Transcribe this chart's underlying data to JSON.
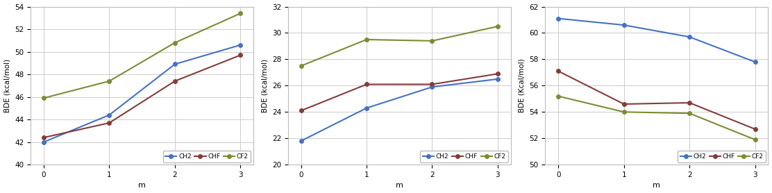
{
  "charts": [
    {
      "title": "",
      "ylabel": "BDE (kcal/mol)",
      "xlabel": "m",
      "ylim": [
        40,
        54
      ],
      "yticks": [
        40,
        42,
        44,
        46,
        48,
        50,
        52,
        54
      ],
      "xticks": [
        0,
        1,
        2,
        3
      ],
      "series": {
        "CH2": [
          42.0,
          44.4,
          48.9,
          50.6
        ],
        "CHF": [
          42.4,
          43.7,
          47.4,
          49.7
        ],
        "CF2": [
          45.9,
          47.4,
          50.8,
          53.4
        ]
      },
      "legend_loc": "lower right"
    },
    {
      "title": "",
      "ylabel": "BDE (kcal/mol)",
      "xlabel": "m",
      "ylim": [
        20,
        32
      ],
      "yticks": [
        20,
        22,
        24,
        26,
        28,
        30,
        32
      ],
      "xticks": [
        0,
        1,
        2,
        3
      ],
      "series": {
        "CH2": [
          21.8,
          24.3,
          25.9,
          26.5
        ],
        "CHF": [
          24.1,
          26.1,
          26.1,
          26.9
        ],
        "CF2": [
          27.5,
          29.5,
          29.4,
          30.5
        ]
      },
      "legend_loc": "lower right"
    },
    {
      "title": "",
      "ylabel": "BDE (Kcal/mol)",
      "xlabel": "m",
      "ylim": [
        50,
        62
      ],
      "yticks": [
        50,
        52,
        54,
        56,
        58,
        60,
        62
      ],
      "xticks": [
        0,
        1,
        2,
        3
      ],
      "series": {
        "CH2": [
          61.1,
          60.6,
          59.7,
          57.8
        ],
        "CHF": [
          57.1,
          54.6,
          54.7,
          52.7
        ],
        "CF2": [
          55.2,
          54.0,
          53.9,
          51.9
        ]
      },
      "legend_loc": "lower right"
    }
  ],
  "colors": {
    "CH2": "#4472C4",
    "CHF": "#843C3C",
    "CF2": "#7B8C35"
  },
  "marker": "o",
  "linewidth": 1.5,
  "markersize": 4,
  "legend_entries": [
    "CH2",
    "CHF",
    "CF2"
  ],
  "grid_color": "#CCCCCC",
  "background_color": "#FFFFFF"
}
